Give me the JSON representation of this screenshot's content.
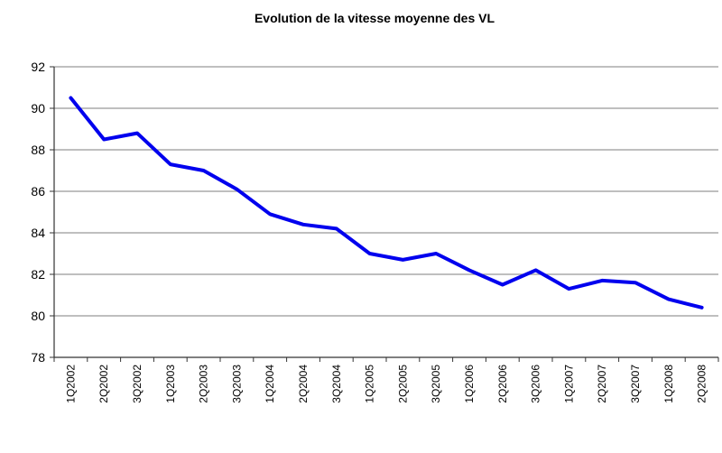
{
  "chart_data": {
    "type": "line",
    "title": "Evolution de la vitesse moyenne des VL",
    "xlabel": "",
    "ylabel": "",
    "categories": [
      "1Q2002",
      "2Q2002",
      "3Q2002",
      "1Q2003",
      "2Q2003",
      "3Q2003",
      "1Q2004",
      "2Q2004",
      "3Q2004",
      "1Q2005",
      "2Q2005",
      "3Q2005",
      "1Q2006",
      "2Q2006",
      "3Q2006",
      "1Q2007",
      "2Q2007",
      "3Q2007",
      "1Q2008",
      "2Q2008"
    ],
    "series": [
      {
        "values": [
          90.5,
          88.5,
          88.8,
          87.3,
          87.0,
          86.1,
          84.9,
          84.4,
          84.2,
          83.0,
          82.7,
          83.0,
          82.2,
          81.5,
          82.2,
          81.3,
          81.7,
          81.6,
          80.8,
          80.4
        ],
        "color": "#0000ee"
      }
    ],
    "ylim": [
      78,
      92
    ],
    "yticks": [
      78,
      80,
      82,
      84,
      86,
      88,
      90,
      92
    ],
    "grid": true,
    "legend": "none"
  }
}
